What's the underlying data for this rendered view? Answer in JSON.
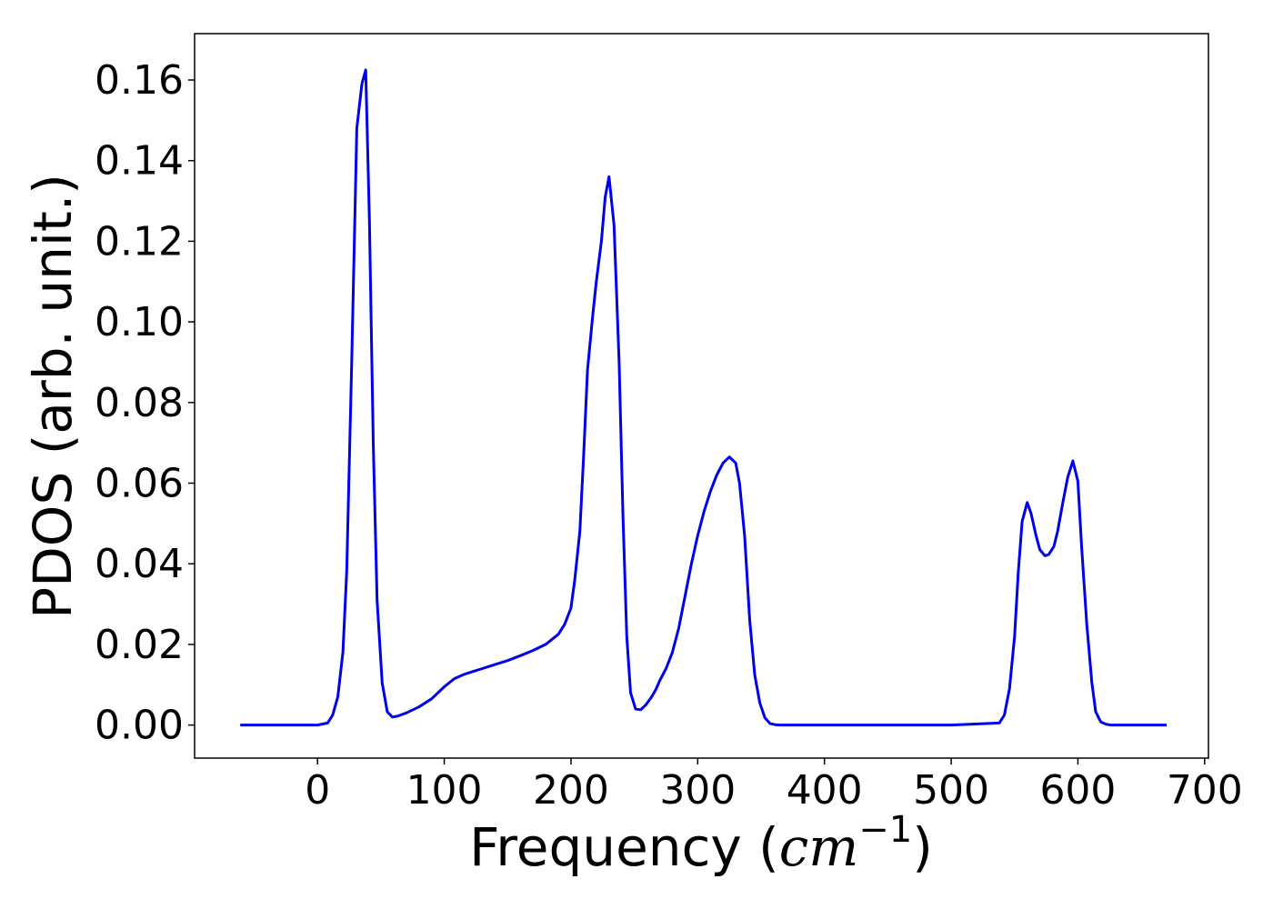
{
  "chart_data": {
    "type": "line",
    "title": "",
    "xlabel": "Frequency (",
    "xlabel_math": "cm",
    "xlabel_sup": "−1",
    "xlabel_close": ")",
    "ylabel": "PDOS (arb. unit.)",
    "xlim": [
      -97,
      703
    ],
    "ylim": [
      -0.0082,
      0.1715
    ],
    "xticks": [
      0,
      100,
      200,
      300,
      400,
      500,
      600,
      700
    ],
    "xtick_labels": [
      "0",
      "100",
      "200",
      "300",
      "400",
      "500",
      "600",
      "700"
    ],
    "yticks": [
      0.0,
      0.02,
      0.04,
      0.06,
      0.08,
      0.1,
      0.12,
      0.14,
      0.16
    ],
    "ytick_labels": [
      "0.00",
      "0.02",
      "0.04",
      "0.06",
      "0.08",
      "0.10",
      "0.12",
      "0.14",
      "0.16"
    ],
    "grid": false,
    "series": [
      {
        "color": "#0000ee",
        "x": [
          -61,
          0,
          8,
          12,
          16,
          20,
          23,
          27,
          31,
          35,
          38,
          41,
          44,
          47,
          51,
          55,
          59,
          63,
          70,
          80,
          90,
          100,
          108,
          115,
          122,
          130,
          140,
          150,
          160,
          170,
          180,
          190,
          195,
          200,
          203,
          207,
          210,
          213,
          217,
          220,
          224,
          227,
          230,
          234,
          238,
          241,
          244,
          247,
          251,
          255,
          259,
          263,
          267,
          270,
          275,
          280,
          285,
          290,
          295,
          300,
          305,
          310,
          315,
          320,
          325,
          330,
          333,
          337,
          341,
          345,
          349,
          353,
          357,
          361,
          365,
          370,
          380,
          400,
          450,
          500,
          538,
          542,
          546,
          550,
          553,
          556,
          560,
          563,
          567,
          570,
          574,
          577,
          581,
          584,
          588,
          592,
          596,
          600,
          603,
          607,
          611,
          614,
          618,
          622,
          626,
          630,
          640,
          670
        ],
        "y": [
          0.0,
          0.0,
          0.0005,
          0.0025,
          0.007,
          0.018,
          0.038,
          0.09,
          0.148,
          0.159,
          0.1625,
          0.125,
          0.07,
          0.031,
          0.0105,
          0.0033,
          0.002,
          0.0022,
          0.003,
          0.0045,
          0.0065,
          0.0095,
          0.0115,
          0.0125,
          0.0132,
          0.014,
          0.015,
          0.016,
          0.0172,
          0.0185,
          0.02,
          0.0225,
          0.025,
          0.029,
          0.036,
          0.048,
          0.067,
          0.088,
          0.101,
          0.11,
          0.12,
          0.131,
          0.136,
          0.124,
          0.09,
          0.052,
          0.022,
          0.008,
          0.004,
          0.0038,
          0.005,
          0.0067,
          0.0088,
          0.011,
          0.014,
          0.018,
          0.024,
          0.032,
          0.04,
          0.047,
          0.053,
          0.058,
          0.062,
          0.065,
          0.0665,
          0.065,
          0.06,
          0.047,
          0.026,
          0.0125,
          0.0055,
          0.0018,
          0.0004,
          0.0001,
          0.0,
          0.0,
          0.0,
          0.0,
          0.0,
          0.0,
          0.0005,
          0.0025,
          0.009,
          0.022,
          0.038,
          0.0505,
          0.0552,
          0.0525,
          0.047,
          0.0435,
          0.042,
          0.0423,
          0.0443,
          0.048,
          0.055,
          0.0615,
          0.0655,
          0.0605,
          0.044,
          0.025,
          0.0105,
          0.0033,
          0.0008,
          0.0002,
          0.0,
          0.0,
          0.0,
          0.0
        ]
      }
    ]
  }
}
